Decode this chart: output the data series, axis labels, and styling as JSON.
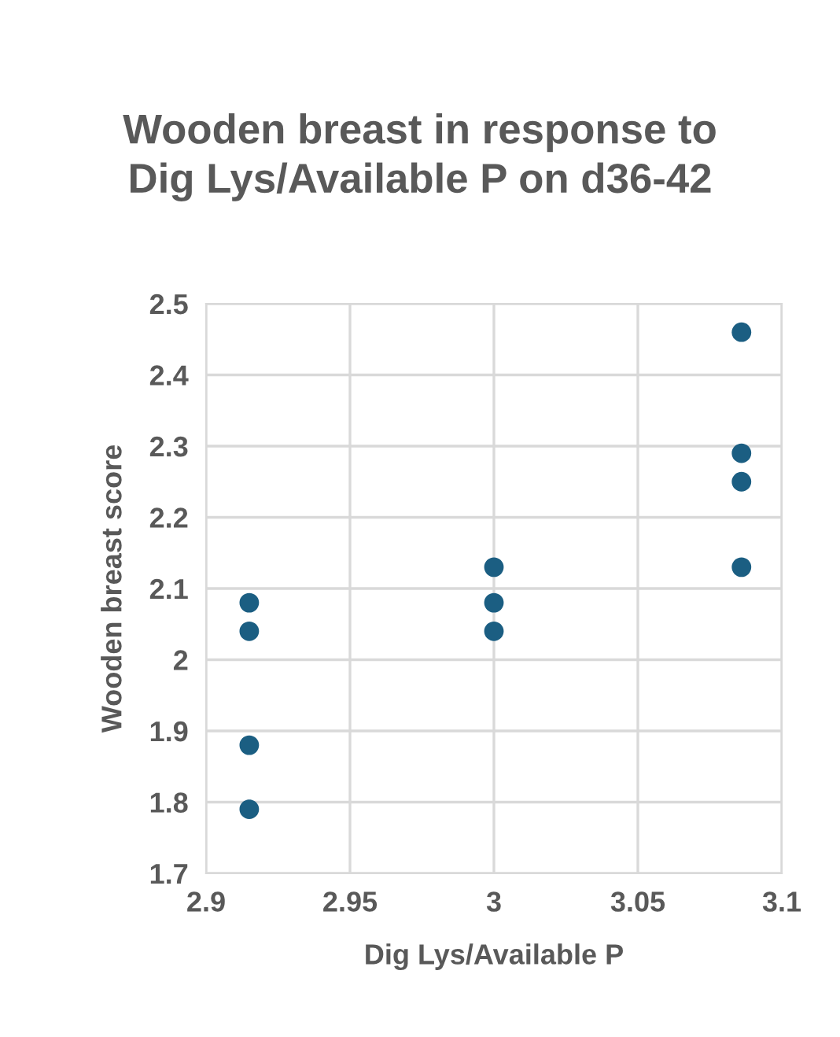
{
  "chart_data": {
    "type": "scatter",
    "title": "Wooden breast in response to Dig Lys/Available P on d36-42",
    "xlabel": "Dig Lys/Available P",
    "ylabel": "Wooden breast score",
    "series": [
      {
        "color": "#1b5e82",
        "x": [
          2.915,
          2.915,
          2.915,
          2.915,
          3.0,
          3.0,
          3.0,
          3.086,
          3.086,
          3.086,
          3.086
        ],
        "values": [
          2.08,
          2.04,
          1.88,
          1.79,
          2.13,
          2.08,
          2.04,
          2.46,
          2.29,
          2.25,
          2.13
        ]
      }
    ],
    "xlim": [
      2.9,
      3.1
    ],
    "xticks": [
      2.9,
      2.95,
      3,
      3.05,
      3.1
    ],
    "ylim": [
      1.7,
      2.5
    ],
    "yticks": [
      1.7,
      1.8,
      1.9,
      2,
      2.1,
      2.2,
      2.3,
      2.4,
      2.5
    ],
    "grid": true,
    "marker": "circle"
  }
}
